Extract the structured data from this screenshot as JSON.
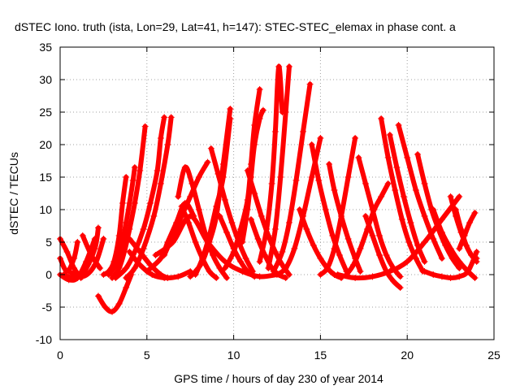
{
  "chart_data": {
    "type": "scatter",
    "title": "dSTEC Iono. truth (ista, Lon=29, Lat=41, h=147): STEC-STEC_elemax in phase cont. a",
    "xlabel": "GPS time / hours of day 230 of year 2014",
    "ylabel": "dSTEC  / TECUs",
    "xlim": [
      0,
      25
    ],
    "ylim": [
      -10,
      35
    ],
    "xticks": [
      0,
      5,
      10,
      15,
      20,
      25
    ],
    "yticks": [
      -10,
      -5,
      0,
      5,
      10,
      15,
      20,
      25,
      30,
      35
    ],
    "grid": true,
    "marker": "+",
    "color": "#ff0000",
    "series": [
      {
        "x": [
          0.0,
          0.4,
          0.8,
          1.2
        ],
        "y": [
          5.5,
          3.5,
          1.0,
          -0.5
        ]
      },
      {
        "x": [
          0.0,
          0.4,
          0.8,
          1.0
        ],
        "y": [
          2.5,
          0.5,
          2.5,
          5.0
        ]
      },
      {
        "x": [
          0.0,
          0.5,
          1.0,
          1.5,
          2.0
        ],
        "y": [
          0.0,
          -0.8,
          -0.5,
          2.0,
          5.5
        ]
      },
      {
        "x": [
          0.2,
          0.8,
          1.4,
          2.0,
          2.2
        ],
        "y": [
          0.0,
          -0.5,
          0.5,
          4.0,
          7.2
        ]
      },
      {
        "x": [
          0.5,
          1.3,
          2.0,
          2.5
        ],
        "y": [
          0.5,
          -0.3,
          1.5,
          5.5
        ]
      },
      {
        "x": [
          1.3,
          1.8,
          2.3
        ],
        "y": [
          6.0,
          3.0,
          1.0
        ]
      },
      {
        "x": [
          2.2,
          2.6,
          3.0,
          3.4,
          3.8,
          4.1
        ],
        "y": [
          -3.3,
          -5.0,
          -5.7,
          -4.5,
          -2.0,
          0.0
        ]
      },
      {
        "x": [
          2.5,
          2.8,
          3.1,
          3.4,
          3.6,
          3.8
        ],
        "y": [
          0.0,
          0.5,
          2.0,
          6.0,
          11.0,
          15.0
        ]
      },
      {
        "x": [
          2.8,
          3.2,
          3.5,
          3.8,
          4.0,
          4.2,
          4.3
        ],
        "y": [
          0.0,
          1.5,
          4.0,
          8.0,
          11.0,
          14.5,
          16.5
        ]
      },
      {
        "x": [
          3.0,
          3.4,
          3.7,
          4.0,
          4.3,
          4.6,
          4.9
        ],
        "y": [
          -0.5,
          1.0,
          3.5,
          7.0,
          11.0,
          16.0,
          22.8
        ]
      },
      {
        "x": [
          3.2,
          3.8,
          4.3,
          4.8,
          5.2,
          5.6,
          5.8,
          6.0
        ],
        "y": [
          -0.5,
          1.0,
          3.5,
          7.0,
          11.0,
          16.0,
          21.0,
          24.2
        ]
      },
      {
        "x": [
          3.8,
          4.3,
          4.8,
          5.4,
          5.8,
          6.2,
          6.4
        ],
        "y": [
          -0.5,
          1.0,
          4.0,
          9.0,
          14.0,
          20.0,
          24.2
        ]
      },
      {
        "x": [
          4.0,
          4.6,
          5.3,
          6.0,
          6.8,
          7.5
        ],
        "y": [
          3.5,
          1.5,
          0.0,
          -0.5,
          -0.3,
          0.5
        ]
      },
      {
        "x": [
          4.0,
          4.6,
          5.2,
          5.8,
          6.2
        ],
        "y": [
          5.5,
          3.5,
          1.5,
          0.0,
          -0.5
        ]
      },
      {
        "x": [
          5.0,
          5.8,
          6.2,
          6.7,
          7.2,
          7.7
        ],
        "y": [
          0.5,
          2.5,
          5.0,
          8.0,
          11.0,
          9.0
        ]
      },
      {
        "x": [
          5.5,
          6.5,
          7.5,
          8.5,
          9.5,
          10.5,
          11.5,
          12.5
        ],
        "y": [
          3.0,
          5.0,
          9.0,
          5.0,
          2.0,
          0.5,
          -0.3,
          0.0
        ]
      },
      {
        "x": [
          6.8,
          7.2,
          7.6,
          8.0,
          8.4,
          8.8,
          9.2,
          9.6
        ],
        "y": [
          12.0,
          16.5,
          14.0,
          10.0,
          6.0,
          3.0,
          1.0,
          -0.5
        ]
      },
      {
        "x": [
          7.0,
          7.4,
          7.8,
          8.2,
          8.6,
          9.0
        ],
        "y": [
          10.5,
          8.0,
          5.0,
          2.5,
          0.5,
          -0.5
        ]
      },
      {
        "x": [
          6.0,
          6.5,
          7.0,
          7.5,
          8.0,
          8.5
        ],
        "y": [
          3.0,
          6.0,
          9.0,
          12.0,
          15.0,
          17.3
        ]
      },
      {
        "x": [
          7.5,
          7.8,
          8.2,
          8.6,
          9.0,
          9.4,
          9.8
        ],
        "y": [
          -0.3,
          0.5,
          2.0,
          5.0,
          9.0,
          17.0,
          25.5
        ]
      },
      {
        "x": [
          7.8,
          8.2,
          8.6,
          9.0,
          9.4,
          9.8
        ],
        "y": [
          0.0,
          2.5,
          6.0,
          10.5,
          15.0,
          24.0
        ]
      },
      {
        "x": [
          8.7,
          9.1,
          9.5,
          9.9,
          10.3,
          10.7,
          11.1
        ],
        "y": [
          19.4,
          15.5,
          11.5,
          8.0,
          5.0,
          2.5,
          0.5
        ]
      },
      {
        "x": [
          9.2,
          9.6,
          10.0,
          10.4,
          10.8,
          11.2
        ],
        "y": [
          9.0,
          6.5,
          4.0,
          2.0,
          0.5,
          -0.3
        ]
      },
      {
        "x": [
          9.5,
          10.0,
          10.4,
          10.8,
          11.0,
          11.2,
          11.5
        ],
        "y": [
          1.0,
          3.5,
          7.0,
          11.5,
          17.0,
          23.0,
          28.5
        ]
      },
      {
        "x": [
          10.5,
          10.8,
          11.0,
          11.2,
          11.5,
          11.7
        ],
        "y": [
          5.0,
          10.0,
          15.0,
          20.0,
          24.0,
          25.3
        ]
      },
      {
        "x": [
          10.8,
          11.2,
          11.6,
          12.0,
          12.4,
          12.8,
          13.2
        ],
        "y": [
          16.0,
          12.5,
          9.0,
          6.0,
          3.5,
          1.5,
          0.0
        ]
      },
      {
        "x": [
          11.0,
          11.4,
          11.8,
          12.2,
          12.6,
          13.0
        ],
        "y": [
          8.5,
          5.5,
          3.0,
          1.0,
          0.0,
          -0.5
        ]
      },
      {
        "x": [
          11.5,
          11.9,
          12.2,
          12.4,
          12.6,
          12.8
        ],
        "y": [
          2.0,
          7.0,
          14.0,
          22.0,
          32.0,
          25.0
        ]
      },
      {
        "x": [
          12.0,
          12.4,
          12.7,
          13.0,
          13.2
        ],
        "y": [
          1.0,
          7.0,
          15.0,
          25.0,
          32.0
        ]
      },
      {
        "x": [
          12.3,
          12.8,
          13.2,
          13.6,
          14.0,
          14.4
        ],
        "y": [
          0.5,
          3.5,
          8.0,
          14.5,
          22.0,
          29.3
        ]
      },
      {
        "x": [
          12.5,
          13.0,
          13.5,
          14.0,
          14.5,
          15.0
        ],
        "y": [
          0.0,
          1.0,
          4.0,
          9.0,
          15.0,
          21.0
        ]
      },
      {
        "x": [
          13.8,
          14.2,
          14.6,
          15.0,
          15.4,
          15.8,
          16.2
        ],
        "y": [
          10.0,
          7.0,
          4.5,
          2.5,
          1.0,
          0.0,
          -0.5
        ]
      },
      {
        "x": [
          14.5,
          14.9,
          15.3,
          15.7,
          16.1,
          16.5
        ],
        "y": [
          20.0,
          14.5,
          10.0,
          6.0,
          3.0,
          0.5
        ]
      },
      {
        "x": [
          15.0,
          15.4,
          15.8,
          16.2,
          16.6,
          17.0
        ],
        "y": [
          0.0,
          1.0,
          4.0,
          9.0,
          15.0,
          21.0
        ]
      },
      {
        "x": [
          15.5,
          15.8,
          16.2,
          16.6,
          17.0,
          17.3
        ],
        "y": [
          17.0,
          13.0,
          9.0,
          5.5,
          2.5,
          0.5
        ]
      },
      {
        "x": [
          16.5,
          16.9,
          17.3,
          17.7,
          18.1,
          18.5,
          18.9
        ],
        "y": [
          0.0,
          1.5,
          4.0,
          7.0,
          10.0,
          12.0,
          14.0
        ]
      },
      {
        "x": [
          16.0,
          17.0,
          18.0,
          19.0,
          20.0,
          21.0,
          22.0,
          23.0
        ],
        "y": [
          0.0,
          -0.5,
          -0.3,
          0.5,
          2.0,
          5.0,
          8.5,
          12.0
        ]
      },
      {
        "x": [
          17.2,
          17.6,
          18.0,
          18.4,
          18.8,
          19.2,
          19.6
        ],
        "y": [
          18.0,
          14.0,
          10.0,
          6.0,
          3.0,
          1.0,
          -0.3
        ]
      },
      {
        "x": [
          17.6,
          18.0,
          18.4,
          18.8,
          19.2,
          19.6
        ],
        "y": [
          9.0,
          6.0,
          3.0,
          0.5,
          -1.0,
          -2.0
        ]
      },
      {
        "x": [
          18.5,
          18.9,
          19.3,
          19.7,
          20.1,
          20.5,
          20.9
        ],
        "y": [
          24.0,
          18.0,
          13.0,
          8.5,
          5.0,
          2.5,
          0.5
        ]
      },
      {
        "x": [
          19.0,
          19.4,
          19.8,
          20.2,
          20.6,
          21.0
        ],
        "y": [
          21.5,
          16.5,
          12.0,
          8.0,
          4.5,
          2.0
        ]
      },
      {
        "x": [
          19.5,
          20.0,
          20.5,
          21.0,
          21.5,
          22.0
        ],
        "y": [
          23.0,
          18.0,
          13.0,
          9.0,
          5.5,
          2.5
        ]
      },
      {
        "x": [
          20.6,
          21.0,
          21.4,
          21.8,
          22.2,
          22.6,
          23.0
        ],
        "y": [
          18.5,
          14.0,
          10.0,
          7.0,
          4.5,
          2.5,
          1.0
        ]
      },
      {
        "x": [
          21.5,
          22.0,
          22.5,
          23.0,
          23.5,
          23.9
        ],
        "y": [
          10.0,
          6.5,
          4.0,
          2.0,
          0.5,
          -0.5
        ]
      },
      {
        "x": [
          22.5,
          22.8,
          23.1,
          23.4,
          23.7,
          24.0
        ],
        "y": [
          12.0,
          9.0,
          6.5,
          4.5,
          3.0,
          2.5
        ]
      },
      {
        "x": [
          22.8,
          23.1,
          23.4,
          23.7,
          24.0
        ],
        "y": [
          10.0,
          7.0,
          4.5,
          3.0,
          2.0
        ]
      },
      {
        "x": [
          23.0,
          23.3,
          23.6,
          23.9
        ],
        "y": [
          4.0,
          6.0,
          8.0,
          9.5
        ]
      },
      {
        "x": [
          21.0,
          21.5,
          22.0,
          22.5,
          23.0,
          23.5,
          24.0
        ],
        "y": [
          0.5,
          0.0,
          -0.3,
          -0.5,
          -0.3,
          0.5,
          3.5
        ]
      }
    ]
  }
}
